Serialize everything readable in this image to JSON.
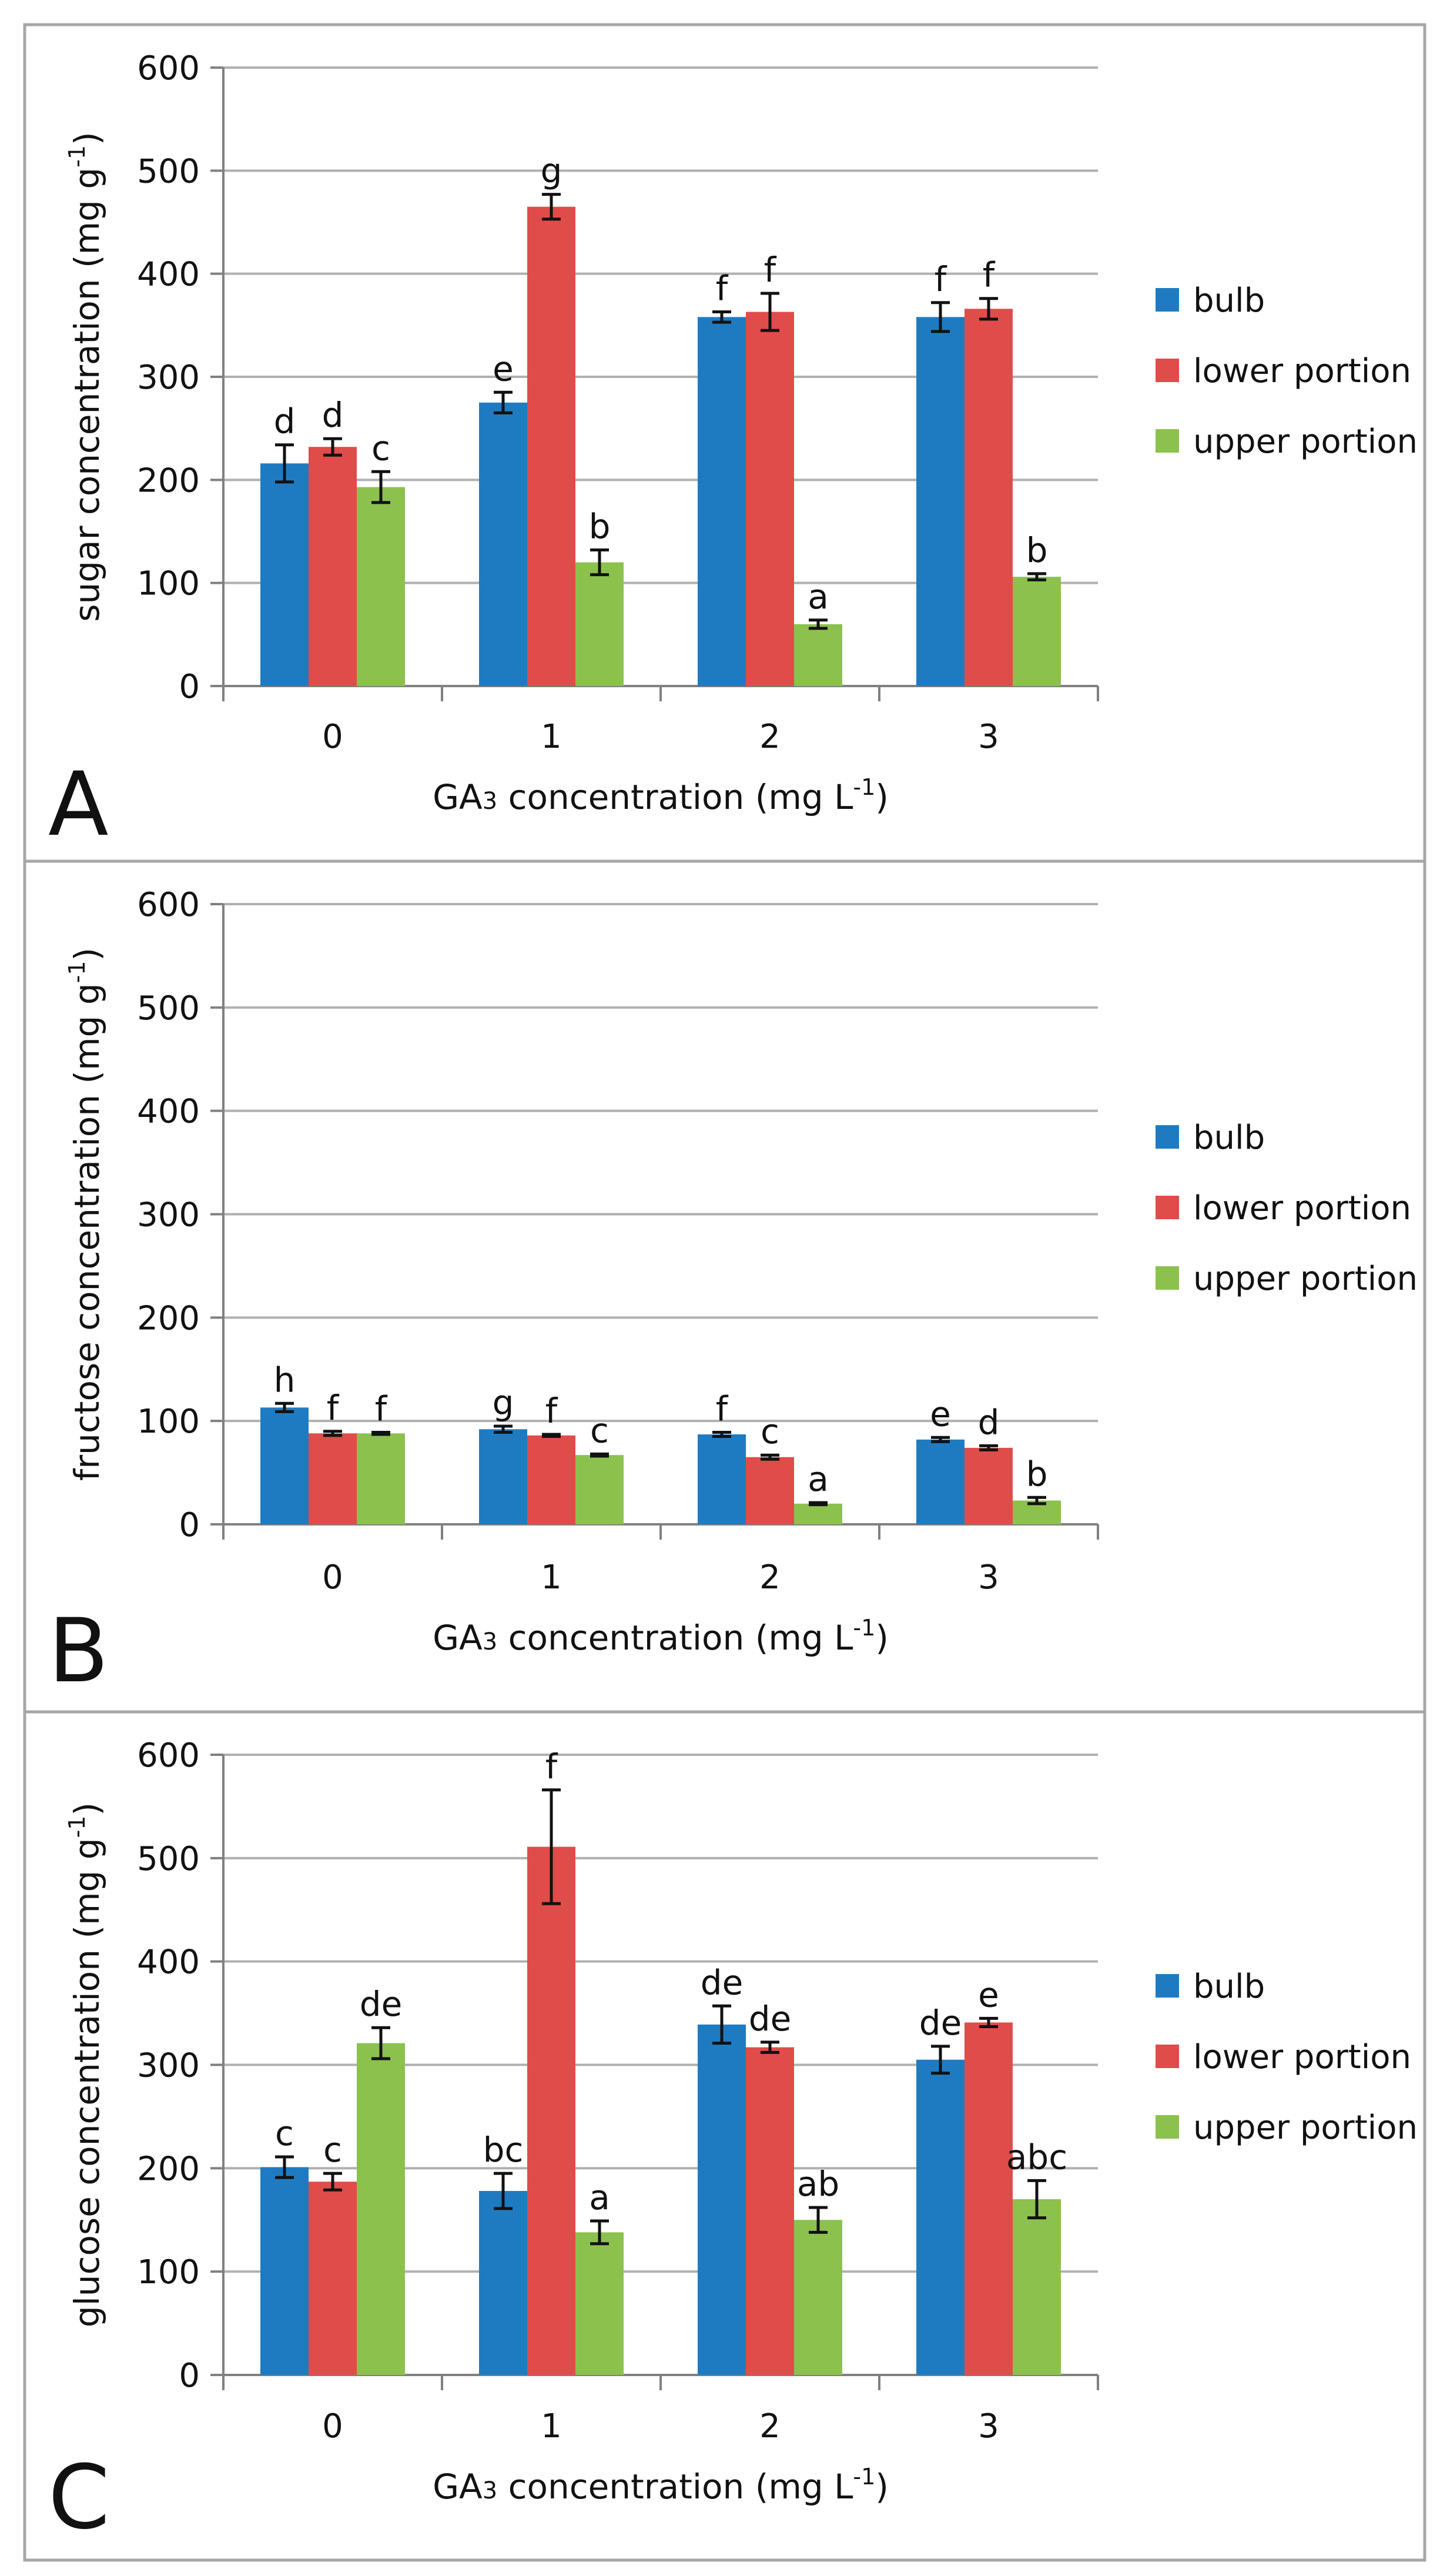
{
  "colors": {
    "bulb": "#1f7bc1",
    "lower": "#e04c4a",
    "upper": "#8cc14e",
    "grid": "#b0b0b0",
    "axis": "#808080",
    "border": "#a6a6a6",
    "error": "#111111"
  },
  "chart_data": [
    {
      "type": "bar",
      "panel_label": "A",
      "xlabel": "GA3 concentration (mg L-1)",
      "xlabel_parts": {
        "pre": "GA",
        "sub": "3",
        "mid": " concentration (mg L",
        "sup": "-1",
        "post": ")"
      },
      "ylabel": "sugar concentration (mg g-1)",
      "ylabel_parts": {
        "pre": "sugar concentration (mg g",
        "sup": "-1",
        "post": ")"
      },
      "ylim": [
        0,
        600
      ],
      "yticks": [
        "0",
        "100",
        "200",
        "300",
        "400",
        "500",
        "600"
      ],
      "categories": [
        "0",
        "1",
        "2",
        "3"
      ],
      "legend": [
        "bulb",
        "lower portion",
        "upper portion"
      ],
      "series": [
        {
          "name": "bulb",
          "values": [
            216,
            275,
            358,
            358
          ],
          "errors": [
            18,
            10,
            5,
            14
          ],
          "letters": [
            "d",
            "e",
            "f",
            "f"
          ]
        },
        {
          "name": "lower portion",
          "values": [
            232,
            465,
            363,
            366
          ],
          "errors": [
            8,
            12,
            18,
            10
          ],
          "letters": [
            "d",
            "g",
            "f",
            "f"
          ]
        },
        {
          "name": "upper portion",
          "values": [
            193,
            120,
            60,
            106
          ],
          "errors": [
            15,
            12,
            4,
            3
          ],
          "letters": [
            "c",
            "b",
            "a",
            "b"
          ]
        }
      ]
    },
    {
      "type": "bar",
      "panel_label": "B",
      "xlabel": "GA3 concentration (mg L-1)",
      "xlabel_parts": {
        "pre": "GA",
        "sub": "3",
        "mid": " concentration (mg L",
        "sup": "-1",
        "post": ")"
      },
      "ylabel": "fructose concentration (mg g-1)",
      "ylabel_parts": {
        "pre": "fructose concentration (mg g",
        "sup": "-1",
        "post": ")"
      },
      "ylim": [
        0,
        600
      ],
      "yticks": [
        "0",
        "100",
        "200",
        "300",
        "400",
        "500",
        "600"
      ],
      "categories": [
        "0",
        "1",
        "2",
        "3"
      ],
      "legend": [
        "bulb",
        "lower portion",
        "upper portion"
      ],
      "series": [
        {
          "name": "bulb",
          "values": [
            113,
            92,
            87,
            82
          ],
          "errors": [
            4,
            3,
            2,
            2
          ],
          "letters": [
            "h",
            "g",
            "f",
            "e"
          ]
        },
        {
          "name": "lower portion",
          "values": [
            88,
            86,
            65,
            74
          ],
          "errors": [
            2,
            1,
            2,
            2
          ],
          "letters": [
            "f",
            "f",
            "c",
            "d"
          ]
        },
        {
          "name": "upper portion",
          "values": [
            88,
            67,
            20,
            23
          ],
          "errors": [
            1,
            1,
            1,
            3
          ],
          "letters": [
            "f",
            "c",
            "a",
            "b"
          ]
        }
      ]
    },
    {
      "type": "bar",
      "panel_label": "C",
      "xlabel": "GA3 concentration (mg L-1)",
      "xlabel_parts": {
        "pre": "GA",
        "sub": "3",
        "mid": " concentration (mg L",
        "sup": "-1",
        "post": ")"
      },
      "ylabel": "glucose concentration (mg g-1)",
      "ylabel_parts": {
        "pre": "glucose concentration (mg g",
        "sup": "-1",
        "post": ")"
      },
      "ylim": [
        0,
        600
      ],
      "yticks": [
        "0",
        "100",
        "200",
        "300",
        "400",
        "500",
        "600"
      ],
      "categories": [
        "0",
        "1",
        "2",
        "3"
      ],
      "legend": [
        "bulb",
        "lower portion",
        "upper portion"
      ],
      "series": [
        {
          "name": "bulb",
          "values": [
            201,
            178,
            339,
            305
          ],
          "errors": [
            10,
            17,
            18,
            13
          ],
          "letters": [
            "c",
            "bc",
            "de",
            "de"
          ]
        },
        {
          "name": "lower portion",
          "values": [
            187,
            511,
            317,
            341
          ],
          "errors": [
            8,
            55,
            5,
            4
          ],
          "letters": [
            "c",
            "f",
            "de",
            "e"
          ]
        },
        {
          "name": "upper portion",
          "values": [
            321,
            138,
            150,
            170
          ],
          "errors": [
            15,
            11,
            12,
            18
          ],
          "letters": [
            "de",
            "a",
            "ab",
            "abc"
          ]
        }
      ]
    }
  ]
}
